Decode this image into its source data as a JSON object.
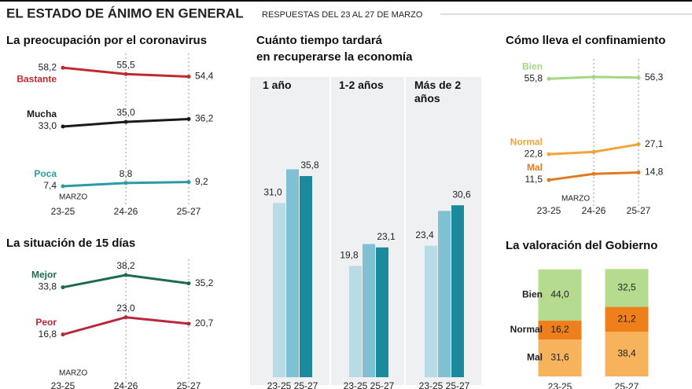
{
  "title": "EL ESTADO DE ÁNIMO EN GENERAL",
  "subtitle": "RESPUESTAS DEL 23 AL 27 DE MARZO",
  "chart_data": [
    {
      "type": "line",
      "title": "La preocupación por el coronavirus",
      "annotation": "MARZO",
      "categories": [
        "23-25",
        "24-26",
        "25-27"
      ],
      "ylim": [
        0,
        65
      ],
      "series": [
        {
          "name": "Bastante",
          "color": "#c0282d",
          "values": [
            58.2,
            55.5,
            54.4
          ],
          "value_labels": [
            "58,2",
            "55,5",
            "54,4"
          ]
        },
        {
          "name": "Mucha",
          "color": "#1a1a1a",
          "values": [
            33.0,
            35.0,
            36.2
          ],
          "value_labels": [
            "33,0",
            "35,0",
            "36,2"
          ]
        },
        {
          "name": "Poca",
          "color": "#2a9aa6",
          "values": [
            7.4,
            8.8,
            9.2
          ],
          "value_labels": [
            "7,4",
            "8,8",
            "9,2"
          ]
        }
      ]
    },
    {
      "type": "line",
      "title": "La situación de 15 días",
      "annotation": "MARZO",
      "categories": [
        "23-25",
        "24-26",
        "25-27"
      ],
      "ylim": [
        0,
        45
      ],
      "series": [
        {
          "name": "Mejor",
          "color": "#1d6b4a",
          "values": [
            33.8,
            38.2,
            35.2
          ],
          "value_labels": [
            "33,8",
            "38,2",
            "35,2"
          ]
        },
        {
          "name": "Peor",
          "color": "#b8283a",
          "values": [
            16.8,
            23.0,
            20.7
          ],
          "value_labels": [
            "16,8",
            "23,0",
            "20,7"
          ]
        }
      ]
    },
    {
      "type": "bar",
      "title": [
        "Cuánto tiempo tardará",
        "en recuperarse la economía"
      ],
      "categories": [
        "1 año",
        "1-2 años",
        "Más de 2 años"
      ],
      "ylim": [
        0,
        40
      ],
      "series": [
        {
          "name": "23-25",
          "color": "#b9dbe6",
          "values": [
            31.0,
            19.8,
            23.4
          ],
          "value_labels": [
            "31,0",
            "19,8",
            "23,4"
          ]
        },
        {
          "name": null,
          "color": "#7fc1d3",
          "values": [
            37.0,
            23.7,
            29.6
          ]
        },
        {
          "name": "25-27",
          "color": "#1a8a9c",
          "values": [
            35.8,
            23.1,
            30.6
          ],
          "value_labels": [
            "35,8",
            "23,1",
            "30,6"
          ]
        }
      ]
    },
    {
      "type": "line",
      "title": "Cómo lleva el confinamiento",
      "annotation": "MARZO",
      "categories": [
        "23-25",
        "24-26",
        "25-27"
      ],
      "ylim": [
        0,
        65
      ],
      "series": [
        {
          "name": "Bien",
          "color": "#a6d785",
          "values": [
            55.8,
            56.6,
            56.3
          ],
          "value_labels": [
            "55,8",
            null,
            "56,3"
          ]
        },
        {
          "name": "Normal",
          "color": "#f0a43a",
          "values": [
            22.8,
            23.8,
            27.1
          ],
          "value_labels": [
            "22,8",
            null,
            "27,1"
          ]
        },
        {
          "name": "Mal",
          "color": "#e07a1f",
          "values": [
            11.5,
            14.2,
            14.8
          ],
          "value_labels": [
            "11,5",
            null,
            "14,8"
          ]
        }
      ]
    },
    {
      "type": "bar",
      "stacked": true,
      "title": "La valoración del Gobierno",
      "categories": [
        "23-25",
        "25-27"
      ],
      "ylim": [
        0,
        95
      ],
      "series": [
        {
          "name": "Mal",
          "color": "#f7b35b",
          "values": [
            31.6,
            38.4
          ],
          "value_labels": [
            "31,6",
            "38,4"
          ]
        },
        {
          "name": "Normal",
          "color": "#ef7f1a",
          "values": [
            16.2,
            21.2
          ],
          "value_labels": [
            "16,2",
            "21,2"
          ]
        },
        {
          "name": "Bien",
          "color": "#b5db8f",
          "values": [
            44.0,
            32.5
          ],
          "value_labels": [
            "44,0",
            "32,5"
          ]
        }
      ]
    }
  ]
}
